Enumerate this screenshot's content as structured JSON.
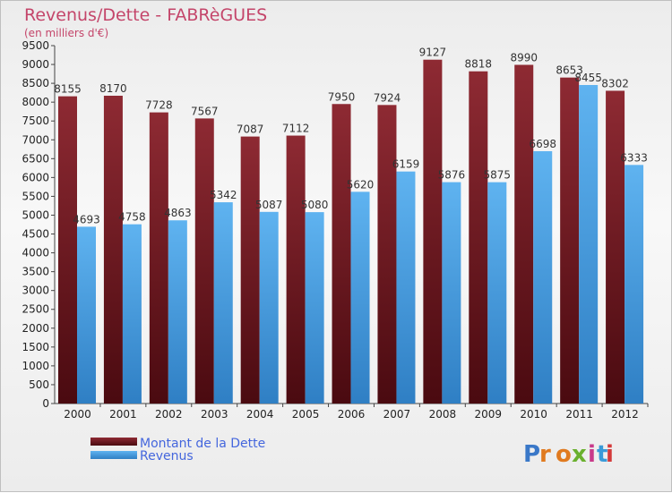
{
  "title": "Revenus/Dette - FABRèGUES",
  "subtitle": "(en milliers d'€)",
  "logo": "Proxiti",
  "chart_data": {
    "type": "bar",
    "title": "Revenus/Dette - FABRèGUES",
    "subtitle": "(en milliers d'€)",
    "categories": [
      "2000",
      "2001",
      "2002",
      "2003",
      "2004",
      "2005",
      "2006",
      "2007",
      "2008",
      "2009",
      "2010",
      "2011",
      "2012"
    ],
    "series": [
      {
        "name": "Montant de la Dette",
        "color": "#7a1e28",
        "values": [
          8155,
          8170,
          7728,
          7567,
          7087,
          7112,
          7950,
          7924,
          9127,
          8818,
          8990,
          8653,
          8302
        ]
      },
      {
        "name": "Revenus",
        "color": "#4fa3e6",
        "values": [
          4693,
          4758,
          4863,
          5342,
          5087,
          5080,
          5620,
          6159,
          5876,
          5875,
          6698,
          8455,
          6333
        ]
      }
    ],
    "ylim": [
      0,
      9500
    ],
    "yticks": [
      0,
      500,
      1000,
      1500,
      2000,
      2500,
      3000,
      3500,
      4000,
      4500,
      5000,
      5500,
      6000,
      6500,
      7000,
      7500,
      8000,
      8500,
      9000,
      9500
    ],
    "grid": false,
    "legend_position": "bottom-left"
  }
}
